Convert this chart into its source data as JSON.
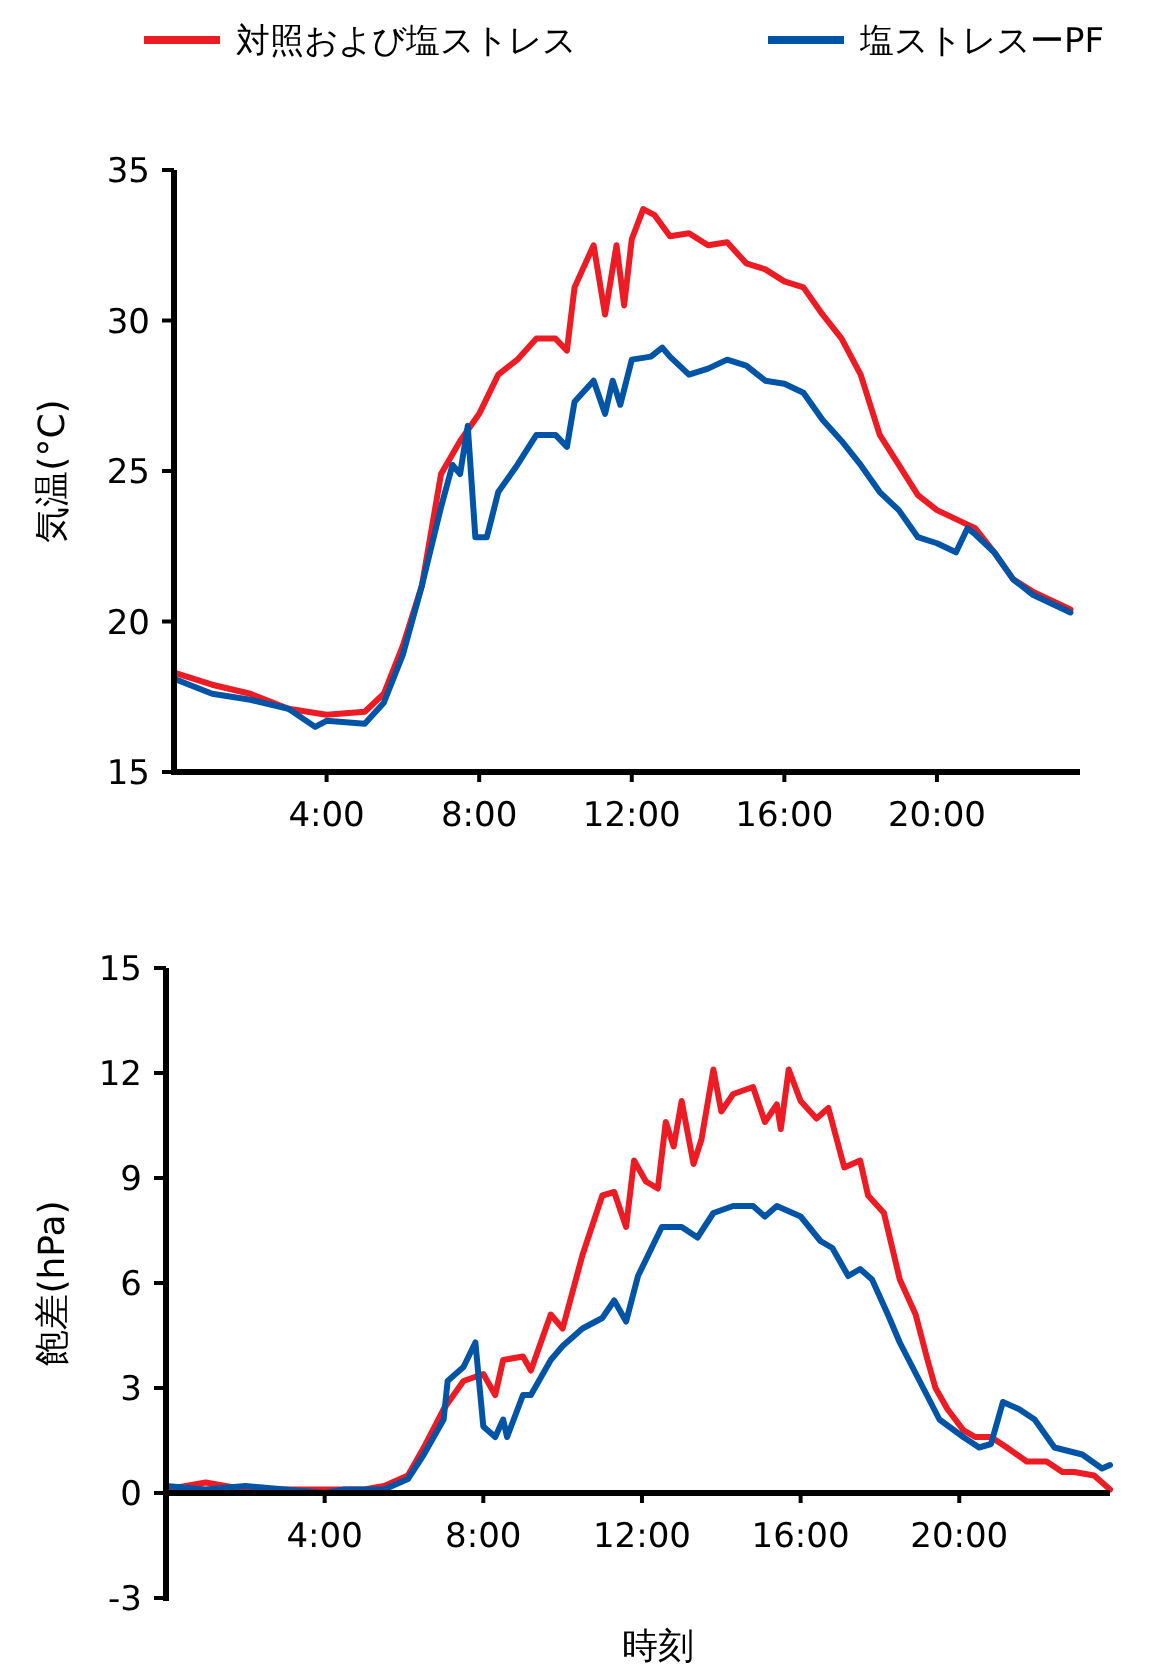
{
  "chart_data": [
    {
      "type": "line",
      "ylabel": "気温(°C)",
      "legend": "top",
      "grid": false,
      "marker": "none",
      "line_style": "solid",
      "xlim": [
        0,
        23.75
      ],
      "xticks": [
        {
          "value": 4,
          "label": "4:00"
        },
        {
          "value": 8,
          "label": "8:00"
        },
        {
          "value": 12,
          "label": "12:00"
        },
        {
          "value": 16,
          "label": "16:00"
        },
        {
          "value": 20,
          "label": "20:00"
        }
      ],
      "ylim": [
        15,
        35
      ],
      "yticks": [
        15,
        20,
        25,
        30,
        35
      ],
      "series": [
        {
          "name": "対照および塩ストレス",
          "color": "#ed1c24",
          "x": [
            0,
            1,
            2,
            3,
            4,
            5,
            5.5,
            6,
            6.5,
            7,
            7.5,
            8,
            8.5,
            9,
            9.5,
            10,
            10.3,
            10.5,
            11,
            11.3,
            11.6,
            11.8,
            12,
            12.3,
            12.6,
            13,
            13.5,
            14,
            14.5,
            15,
            15.5,
            16,
            16.5,
            17,
            17.5,
            18,
            18.5,
            19,
            19.5,
            20,
            20.5,
            21,
            21.5,
            22,
            22.5,
            23,
            23.5
          ],
          "values": [
            18.3,
            17.9,
            17.6,
            17.1,
            16.9,
            17.0,
            17.6,
            19.2,
            21.2,
            24.9,
            26.0,
            26.9,
            28.2,
            28.7,
            29.4,
            29.4,
            29.0,
            31.1,
            32.5,
            30.2,
            32.5,
            30.5,
            32.7,
            33.7,
            33.5,
            32.8,
            32.9,
            32.5,
            32.6,
            31.9,
            31.7,
            31.3,
            31.1,
            30.2,
            29.4,
            28.2,
            26.2,
            25.2,
            24.2,
            23.7,
            23.4,
            23.1,
            22.3,
            21.4,
            21.0,
            20.7,
            20.4
          ]
        },
        {
          "name": "塩ストレスーPF",
          "color": "#0054a6",
          "x": [
            0,
            1,
            2,
            3,
            3.7,
            4,
            5,
            5.5,
            6,
            6.5,
            7,
            7.3,
            7.5,
            7.7,
            7.9,
            8.2,
            8.5,
            9,
            9.5,
            10,
            10.3,
            10.5,
            11,
            11.3,
            11.5,
            11.7,
            12,
            12.5,
            12.8,
            13,
            13.5,
            14,
            14.5,
            15,
            15.5,
            16,
            16.5,
            17,
            17.5,
            18,
            18.5,
            19,
            19.5,
            20,
            20.5,
            20.8,
            21,
            21.5,
            22,
            22.5,
            23,
            23.5
          ],
          "values": [
            18.1,
            17.6,
            17.4,
            17.1,
            16.5,
            16.7,
            16.6,
            17.3,
            18.9,
            21.2,
            23.8,
            25.2,
            24.9,
            26.5,
            22.8,
            22.8,
            24.3,
            25.2,
            26.2,
            26.2,
            25.8,
            27.3,
            28.0,
            26.9,
            28.0,
            27.2,
            28.7,
            28.8,
            29.1,
            28.8,
            28.2,
            28.4,
            28.7,
            28.5,
            28.0,
            27.9,
            27.6,
            26.7,
            26.0,
            25.2,
            24.3,
            23.7,
            22.8,
            22.6,
            22.3,
            23.1,
            22.9,
            22.3,
            21.4,
            20.9,
            20.6,
            20.3
          ]
        }
      ]
    },
    {
      "type": "line",
      "xlabel": "時刻",
      "ylabel": "飽差(hPa)",
      "grid": false,
      "marker": "none",
      "line_style": "solid",
      "xlim": [
        0,
        23.8
      ],
      "xticks": [
        {
          "value": 4,
          "label": "4:00"
        },
        {
          "value": 8,
          "label": "8:00"
        },
        {
          "value": 12,
          "label": "12:00"
        },
        {
          "value": 16,
          "label": "16:00"
        },
        {
          "value": 20,
          "label": "20:00"
        }
      ],
      "ylim": [
        -3,
        15
      ],
      "yticks": [
        -3,
        0,
        3,
        6,
        9,
        12,
        15
      ],
      "series": [
        {
          "color": "#ed1c24",
          "x": [
            0,
            1,
            2,
            3,
            4,
            5,
            5.5,
            6.1,
            6.5,
            7.0,
            7.5,
            8.0,
            8.3,
            8.5,
            9.0,
            9.2,
            9.7,
            10.0,
            10.5,
            11.0,
            11.3,
            11.6,
            11.8,
            12.1,
            12.4,
            12.6,
            12.8,
            13.0,
            13.3,
            13.5,
            13.8,
            14.0,
            14.3,
            14.8,
            15.1,
            15.4,
            15.5,
            15.7,
            16.0,
            16.4,
            16.7,
            17.1,
            17.5,
            17.7,
            18.1,
            18.5,
            18.9,
            19.2,
            19.4,
            19.7,
            20.1,
            20.4,
            20.8,
            21.2,
            21.7,
            22.2,
            22.6,
            22.9,
            23.4,
            23.8
          ],
          "values": [
            0.1,
            0.3,
            0.1,
            0.1,
            0.1,
            0.1,
            0.2,
            0.5,
            1.3,
            2.4,
            3.2,
            3.4,
            2.8,
            3.8,
            3.9,
            3.5,
            5.1,
            4.7,
            6.8,
            8.5,
            8.6,
            7.6,
            9.5,
            8.9,
            8.7,
            10.6,
            9.9,
            11.2,
            9.4,
            10.1,
            12.1,
            10.9,
            11.4,
            11.6,
            10.6,
            11.1,
            10.4,
            12.1,
            11.2,
            10.7,
            11.0,
            9.3,
            9.5,
            8.5,
            8.0,
            6.1,
            5.1,
            3.8,
            3.0,
            2.4,
            1.8,
            1.6,
            1.6,
            1.3,
            0.9,
            0.9,
            0.6,
            0.6,
            0.5,
            0.1
          ]
        },
        {
          "color": "#0054a6",
          "x": [
            0,
            1,
            2,
            3,
            4,
            4.5,
            5,
            5.5,
            6.1,
            6.5,
            7.0,
            7.1,
            7.5,
            7.8,
            8.0,
            8.3,
            8.5,
            8.6,
            9.0,
            9.2,
            9.7,
            10.0,
            10.5,
            11.0,
            11.3,
            11.6,
            11.9,
            12.5,
            13.0,
            13.4,
            13.8,
            14.3,
            14.8,
            15.1,
            15.4,
            16.0,
            16.5,
            16.8,
            17.2,
            17.5,
            17.8,
            18.2,
            18.5,
            19.0,
            19.5,
            20.1,
            20.5,
            20.8,
            21.1,
            21.5,
            21.9,
            22.4,
            23.1,
            23.6,
            23.8
          ],
          "values": [
            0.2,
            0.1,
            0.2,
            0.1,
            0.0,
            0.1,
            0.1,
            0.1,
            0.4,
            1.1,
            2.1,
            3.2,
            3.6,
            4.3,
            1.9,
            1.6,
            2.1,
            1.6,
            2.8,
            2.8,
            3.8,
            4.2,
            4.7,
            5.0,
            5.5,
            4.9,
            6.2,
            7.6,
            7.6,
            7.3,
            8.0,
            8.2,
            8.2,
            7.9,
            8.2,
            7.9,
            7.2,
            7.0,
            6.2,
            6.4,
            6.1,
            5.1,
            4.3,
            3.2,
            2.1,
            1.6,
            1.3,
            1.4,
            2.6,
            2.4,
            2.1,
            1.3,
            1.1,
            0.7,
            0.8
          ]
        }
      ]
    }
  ]
}
